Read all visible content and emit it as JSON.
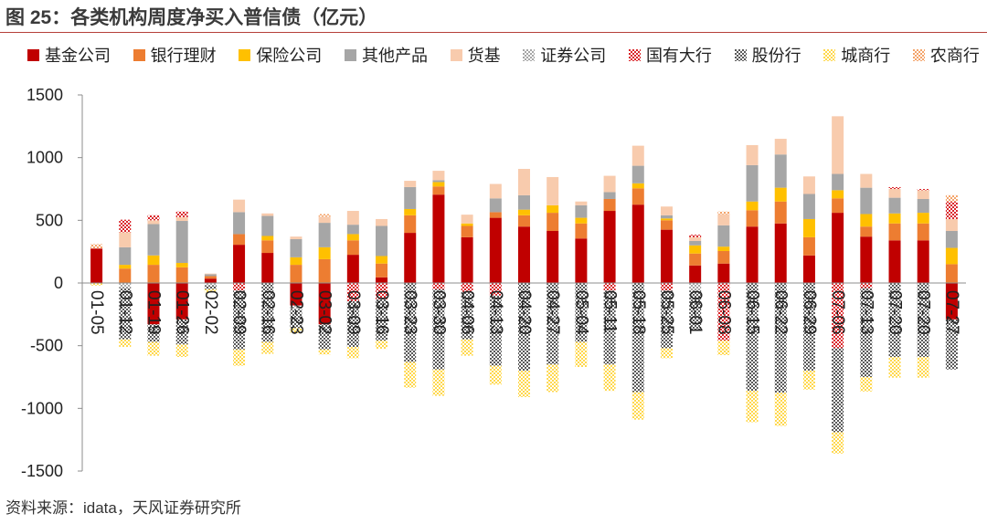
{
  "source": "资料来源：idata，天风证券研究所",
  "chart_data": {
    "type": "bar",
    "stacked": true,
    "title": "图 25：各类机构周度净买入普信债（亿元）",
    "legend": "top",
    "grid": false,
    "ylim": [
      -1500,
      1500
    ],
    "yticks": [
      1500,
      1000,
      500,
      0,
      -500,
      -1000,
      -1500
    ],
    "categories": [
      "01-05",
      "01-12",
      "01-19",
      "01-26",
      "02-02",
      "02-09",
      "02-16",
      "02-23",
      "03-02",
      "03-09",
      "03-16",
      "03-23",
      "03-30",
      "04-06",
      "04-13",
      "04-20",
      "04-27",
      "05-04",
      "05-11",
      "05-18",
      "05-25",
      "06-01",
      "06-08",
      "06-15",
      "06-22",
      "06-29",
      "07-06",
      "07-13",
      "07-20",
      "07-20",
      "07-27"
    ],
    "series": [
      {
        "name": "基金公司",
        "color": "#c00000",
        "pattern": "solid",
        "values": [
          275,
          0,
          -330,
          -290,
          35,
          305,
          240,
          -180,
          -330,
          225,
          45,
          400,
          705,
          365,
          520,
          450,
          415,
          355,
          575,
          625,
          425,
          140,
          155,
          450,
          475,
          220,
          560,
          370,
          340,
          340,
          -290
        ]
      },
      {
        "name": "银行理财",
        "color": "#ed7d31",
        "pattern": "solid",
        "values": [
          0,
          115,
          145,
          125,
          20,
          85,
          100,
          145,
          190,
          115,
          110,
          140,
          65,
          90,
          45,
          90,
          145,
          120,
          95,
          130,
          75,
          95,
          100,
          130,
          175,
          145,
          115,
          80,
          135,
          135,
          150
        ]
      },
      {
        "name": "保险公司",
        "color": "#ffc000",
        "pattern": "solid",
        "values": [
          0,
          30,
          75,
          35,
          0,
          0,
          35,
          60,
          95,
          50,
          60,
          50,
          35,
          20,
          0,
          45,
          60,
          45,
          0,
          40,
          15,
          65,
          35,
          70,
          110,
          145,
          65,
          100,
          80,
          85,
          130
        ]
      },
      {
        "name": "其他产品",
        "color": "#a6a6a6",
        "pattern": "solid",
        "values": [
          0,
          140,
          250,
          335,
          15,
          175,
          160,
          145,
          195,
          75,
          240,
          175,
          15,
          0,
          110,
          115,
          0,
          100,
          55,
          140,
          25,
          35,
          170,
          290,
          265,
          200,
          130,
          210,
          125,
          110,
          135
        ]
      },
      {
        "name": "货基",
        "color": "#f8cbad",
        "pattern": "solid",
        "values": [
          0,
          120,
          30,
          30,
          5,
          100,
          20,
          20,
          50,
          110,
          55,
          50,
          75,
          70,
          115,
          210,
          225,
          30,
          130,
          160,
          70,
          30,
          90,
          160,
          125,
          140,
          460,
          110,
          70,
          70,
          95
        ]
      },
      {
        "name": "证券公司",
        "color": "#a6a6a6",
        "pattern": "dotted",
        "values": [
          0,
          -40,
          0,
          0,
          -20,
          0,
          0,
          -30,
          0,
          0,
          0,
          0,
          0,
          0,
          0,
          0,
          0,
          0,
          0,
          0,
          0,
          -60,
          0,
          0,
          0,
          0,
          0,
          0,
          0,
          0,
          0
        ]
      },
      {
        "name": "国有大行",
        "color": "#d9252a",
        "pattern": "dotted",
        "values": [
          0,
          100,
          40,
          45,
          0,
          -60,
          0,
          0,
          0,
          -145,
          -130,
          0,
          -50,
          -70,
          -100,
          0,
          0,
          0,
          -60,
          0,
          -60,
          20,
          -460,
          0,
          0,
          0,
          -520,
          -40,
          15,
          10,
          140
        ]
      },
      {
        "name": "股份行",
        "color": "#595959",
        "pattern": "dotted",
        "values": [
          0,
          -410,
          -140,
          -200,
          -30,
          -470,
          -470,
          -150,
          -200,
          -365,
          -330,
          -630,
          -640,
          -380,
          -560,
          -700,
          -650,
          -470,
          -590,
          -870,
          -460,
          -320,
          0,
          -860,
          -875,
          -700,
          -670,
          -710,
          -590,
          -590,
          -400
        ]
      },
      {
        "name": "城商行",
        "color": "#ffd84d",
        "pattern": "dotted",
        "values": [
          -20,
          -60,
          -110,
          -100,
          -25,
          -130,
          -95,
          -40,
          -40,
          -90,
          -65,
          -205,
          -210,
          -130,
          -150,
          -210,
          -220,
          -200,
          -210,
          -220,
          -80,
          0,
          -115,
          -250,
          -265,
          -150,
          -170,
          -115,
          -165,
          -165,
          0
        ]
      },
      {
        "name": "农商行",
        "color": "#f4a46a",
        "pattern": "dotted",
        "values": [
          35,
          0,
          0,
          0,
          0,
          0,
          0,
          0,
          20,
          0,
          0,
          0,
          0,
          0,
          0,
          0,
          0,
          0,
          0,
          0,
          0,
          0,
          20,
          0,
          0,
          0,
          0,
          0,
          0,
          0,
          50
        ]
      }
    ]
  }
}
